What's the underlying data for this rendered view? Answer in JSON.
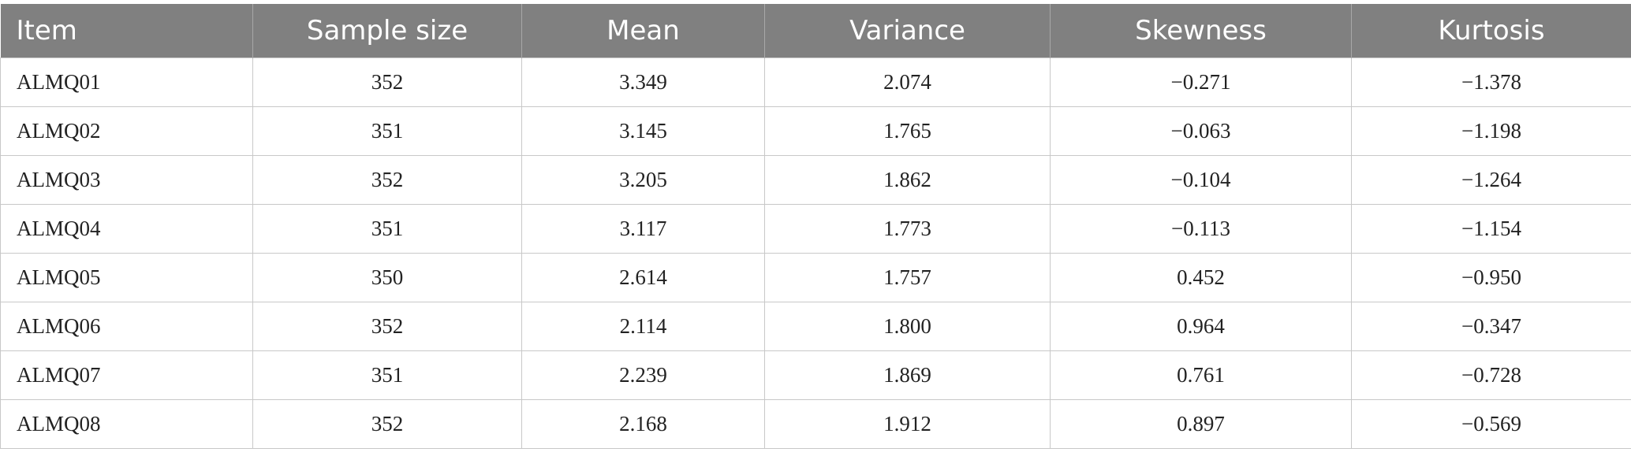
{
  "table": {
    "header": [
      "Item",
      "Sample size",
      "Mean",
      "Variance",
      "Skewness",
      "Kurtosis"
    ],
    "rows": [
      [
        "ALMQ01",
        "352",
        "3.349",
        "2.074",
        "−0.271",
        "−1.378"
      ],
      [
        "ALMQ02",
        "351",
        "3.145",
        "1.765",
        "−0.063",
        "−1.198"
      ],
      [
        "ALMQ03",
        "352",
        "3.205",
        "1.862",
        "−0.104",
        "−1.264"
      ],
      [
        "ALMQ04",
        "351",
        "3.117",
        "1.773",
        "−0.113",
        "−1.154"
      ],
      [
        "ALMQ05",
        "350",
        "2.614",
        "1.757",
        "0.452",
        "−0.950"
      ],
      [
        "ALMQ06",
        "352",
        "2.114",
        "1.800",
        "0.964",
        "−0.347"
      ],
      [
        "ALMQ07",
        "351",
        "2.239",
        "1.869",
        "0.761",
        "−0.728"
      ],
      [
        "ALMQ08",
        "352",
        "2.168",
        "1.912",
        "0.897",
        "−0.569"
      ]
    ]
  }
}
